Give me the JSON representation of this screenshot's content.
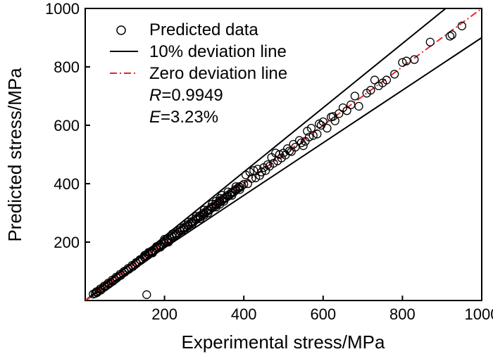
{
  "chart_data": {
    "type": "scatter",
    "xlabel": "Experimental stress/MPa",
    "ylabel": "Predicted stress/MPa",
    "xlim": [
      0,
      1000
    ],
    "ylim": [
      0,
      1000
    ],
    "xticks": [
      200,
      400,
      600,
      800,
      1000
    ],
    "yticks": [
      200,
      400,
      600,
      800,
      1000
    ],
    "grid": false,
    "legend_position": "top-left",
    "legend": {
      "scatter_label": "Predicted data",
      "deviation_label": "10% deviation line",
      "zero_label": "Zero deviation line",
      "r_symbol": "R",
      "r_value": "=0.9949",
      "e_symbol": "E",
      "e_value": "=3.23%"
    },
    "lines": [
      {
        "name": "10% deviation line (upper)",
        "slope": 1.1,
        "color": "#000000"
      },
      {
        "name": "10% deviation line (lower)",
        "slope": 0.9,
        "color": "#000000"
      },
      {
        "name": "Zero deviation line",
        "slope": 1.0,
        "color": "#e8262b"
      }
    ],
    "series": [
      {
        "name": "Predicted data",
        "points": [
          [
            20,
            22
          ],
          [
            25,
            24
          ],
          [
            28,
            30
          ],
          [
            30,
            27
          ],
          [
            35,
            33
          ],
          [
            38,
            40
          ],
          [
            40,
            36
          ],
          [
            45,
            43
          ],
          [
            48,
            50
          ],
          [
            50,
            47
          ],
          [
            55,
            52
          ],
          [
            58,
            60
          ],
          [
            60,
            57
          ],
          [
            65,
            62
          ],
          [
            68,
            70
          ],
          [
            70,
            66
          ],
          [
            75,
            72
          ],
          [
            78,
            80
          ],
          [
            80,
            77
          ],
          [
            85,
            83
          ],
          [
            88,
            90
          ],
          [
            90,
            86
          ],
          [
            95,
            93
          ],
          [
            98,
            100
          ],
          [
            100,
            97
          ],
          [
            105,
            103
          ],
          [
            108,
            110
          ],
          [
            110,
            107
          ],
          [
            115,
            112
          ],
          [
            118,
            120
          ],
          [
            120,
            116
          ],
          [
            125,
            122
          ],
          [
            128,
            130
          ],
          [
            130,
            127
          ],
          [
            135,
            133
          ],
          [
            138,
            140
          ],
          [
            140,
            137
          ],
          [
            145,
            142
          ],
          [
            148,
            150
          ],
          [
            150,
            147
          ],
          [
            155,
            152
          ],
          [
            158,
            160
          ],
          [
            160,
            157
          ],
          [
            165,
            162
          ],
          [
            168,
            170
          ],
          [
            170,
            167
          ],
          [
            175,
            172
          ],
          [
            178,
            180
          ],
          [
            180,
            177
          ],
          [
            185,
            183
          ],
          [
            188,
            190
          ],
          [
            190,
            186
          ],
          [
            195,
            193
          ],
          [
            198,
            200
          ],
          [
            200,
            197
          ],
          [
            205,
            203
          ],
          [
            208,
            210
          ],
          [
            210,
            207
          ],
          [
            215,
            212
          ],
          [
            218,
            220
          ],
          [
            220,
            217
          ],
          [
            225,
            222
          ],
          [
            228,
            230
          ],
          [
            230,
            227
          ],
          [
            235,
            233
          ],
          [
            238,
            240
          ],
          [
            240,
            237
          ],
          [
            245,
            242
          ],
          [
            248,
            250
          ],
          [
            250,
            247
          ],
          [
            255,
            252
          ],
          [
            258,
            260
          ],
          [
            260,
            257
          ],
          [
            265,
            262
          ],
          [
            268,
            270
          ],
          [
            270,
            267
          ],
          [
            275,
            272
          ],
          [
            278,
            280
          ],
          [
            280,
            277
          ],
          [
            285,
            283
          ],
          [
            288,
            290
          ],
          [
            290,
            286
          ],
          [
            295,
            293
          ],
          [
            298,
            300
          ],
          [
            300,
            297
          ],
          [
            305,
            303
          ],
          [
            308,
            310
          ],
          [
            310,
            307
          ],
          [
            315,
            312
          ],
          [
            318,
            320
          ],
          [
            320,
            317
          ],
          [
            325,
            322
          ],
          [
            328,
            330
          ],
          [
            330,
            326
          ],
          [
            335,
            333
          ],
          [
            338,
            340
          ],
          [
            340,
            337
          ],
          [
            345,
            342
          ],
          [
            348,
            350
          ],
          [
            350,
            347
          ],
          [
            355,
            352
          ],
          [
            358,
            360
          ],
          [
            360,
            357
          ],
          [
            365,
            362
          ],
          [
            368,
            370
          ],
          [
            370,
            367
          ],
          [
            375,
            372
          ],
          [
            378,
            380
          ],
          [
            380,
            377
          ],
          [
            385,
            383
          ],
          [
            388,
            390
          ],
          [
            390,
            387
          ],
          [
            395,
            393
          ],
          [
            400,
            398
          ],
          [
            150,
            155
          ],
          [
            160,
            165
          ],
          [
            170,
            163
          ],
          [
            180,
            185
          ],
          [
            190,
            183
          ],
          [
            200,
            210
          ],
          [
            210,
            200
          ],
          [
            220,
            228
          ],
          [
            230,
            222
          ],
          [
            240,
            248
          ],
          [
            250,
            242
          ],
          [
            260,
            268
          ],
          [
            270,
            262
          ],
          [
            280,
            288
          ],
          [
            290,
            280
          ],
          [
            300,
            310
          ],
          [
            310,
            300
          ],
          [
            320,
            330
          ],
          [
            330,
            320
          ],
          [
            340,
            350
          ],
          [
            350,
            340
          ],
          [
            360,
            372
          ],
          [
            370,
            360
          ],
          [
            380,
            390
          ],
          [
            390,
            380
          ],
          [
            260,
            255
          ],
          [
            300,
            292
          ],
          [
            330,
            340
          ],
          [
            340,
            330
          ],
          [
            345,
            360
          ],
          [
            405,
            430
          ],
          [
            410,
            400
          ],
          [
            415,
            440
          ],
          [
            420,
            418
          ],
          [
            425,
            445
          ],
          [
            430,
            420
          ],
          [
            435,
            450
          ],
          [
            440,
            428
          ],
          [
            445,
            440
          ],
          [
            450,
            455
          ],
          [
            455,
            445
          ],
          [
            460,
            465
          ],
          [
            465,
            460
          ],
          [
            470,
            490
          ],
          [
            475,
            470
          ],
          [
            480,
            505
          ],
          [
            485,
            478
          ],
          [
            490,
            500
          ],
          [
            495,
            488
          ],
          [
            500,
            505
          ],
          [
            505,
            498
          ],
          [
            510,
            520
          ],
          [
            515,
            512
          ],
          [
            520,
            510
          ],
          [
            525,
            535
          ],
          [
            530,
            525
          ],
          [
            540,
            548
          ],
          [
            545,
            540
          ],
          [
            550,
            530
          ],
          [
            555,
            545
          ],
          [
            560,
            580
          ],
          [
            565,
            560
          ],
          [
            570,
            590
          ],
          [
            575,
            565
          ],
          [
            585,
            570
          ],
          [
            590,
            605
          ],
          [
            595,
            600
          ],
          [
            600,
            612
          ],
          [
            610,
            590
          ],
          [
            620,
            628
          ],
          [
            625,
            630
          ],
          [
            630,
            615
          ],
          [
            640,
            640
          ],
          [
            650,
            660
          ],
          [
            660,
            650
          ],
          [
            670,
            670
          ],
          [
            680,
            700
          ],
          [
            690,
            665
          ],
          [
            710,
            710
          ],
          [
            720,
            720
          ],
          [
            730,
            755
          ],
          [
            740,
            735
          ],
          [
            750,
            745
          ],
          [
            760,
            755
          ],
          [
            780,
            775
          ],
          [
            800,
            815
          ],
          [
            810,
            820
          ],
          [
            830,
            825
          ],
          [
            870,
            885
          ],
          [
            920,
            905
          ],
          [
            925,
            910
          ],
          [
            950,
            940
          ],
          [
            155,
            20
          ]
        ]
      }
    ]
  }
}
